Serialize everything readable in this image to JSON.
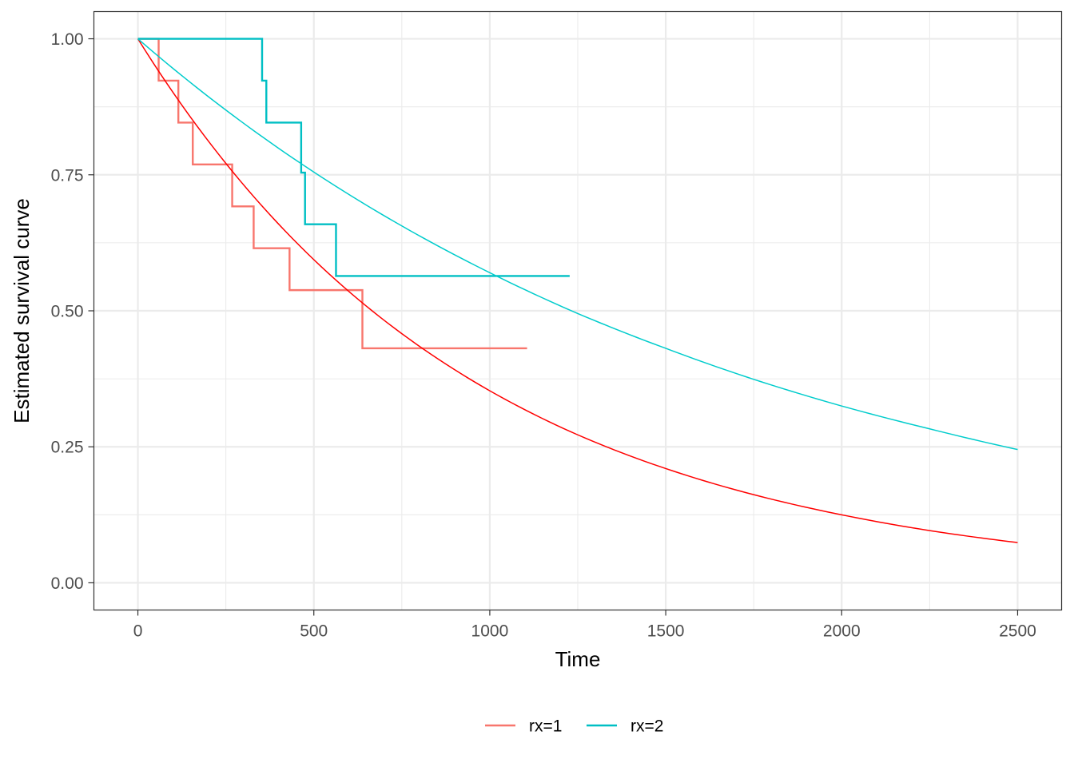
{
  "chart_data": {
    "type": "line",
    "title": "",
    "xlabel": "Time",
    "ylabel": "Estimated survival curve",
    "xlim": [
      -125,
      2625
    ],
    "ylim": [
      -0.05,
      1.05
    ],
    "x_ticks": [
      0,
      500,
      1000,
      1500,
      2000,
      2500
    ],
    "x_tick_labels": [
      "0",
      "500",
      "1000",
      "1500",
      "2000",
      "2500"
    ],
    "y_ticks": [
      0,
      0.25,
      0.5,
      0.75,
      1
    ],
    "y_tick_labels": [
      "0.00",
      "0.25",
      "0.50",
      "0.75",
      "1.00"
    ],
    "grid": true,
    "legend_position": "bottom",
    "series": [
      {
        "name": "rx=1",
        "kind": "step",
        "color": "#F8766D",
        "x": [
          0,
          59,
          115,
          156,
          268,
          329,
          431,
          638,
          1106
        ],
        "y": [
          1.0,
          0.923,
          0.846,
          0.769,
          0.692,
          0.615,
          0.538,
          0.431,
          0.431
        ]
      },
      {
        "name": "rx=2",
        "kind": "step",
        "color": "#00BFC4",
        "x": [
          0,
          353,
          365,
          464,
          475,
          563,
          1227
        ],
        "y": [
          1.0,
          0.923,
          0.846,
          0.754,
          0.659,
          0.564,
          0.564
        ]
      },
      {
        "name": "",
        "kind": "curve",
        "color": "#FF0000",
        "x": [
          0,
          250,
          500,
          750,
          1000,
          1250,
          1500,
          1750,
          2000,
          2250,
          2500
        ],
        "y": [
          1.0,
          0.771,
          0.594,
          0.458,
          0.353,
          0.272,
          0.21,
          0.162,
          0.125,
          0.096,
          0.074
        ]
      },
      {
        "name": "",
        "kind": "curve",
        "color": "#00CCCC",
        "x": [
          0,
          250,
          500,
          750,
          1000,
          1250,
          1500,
          1750,
          2000,
          2250,
          2500
        ],
        "y": [
          1.0,
          0.869,
          0.755,
          0.656,
          0.57,
          0.495,
          0.431,
          0.374,
          0.325,
          0.283,
          0.245
        ]
      }
    ]
  }
}
